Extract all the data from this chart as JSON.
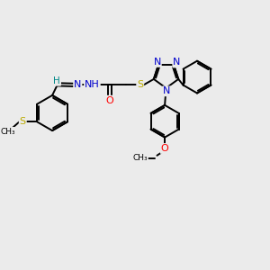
{
  "bg_color": "#ebebeb",
  "bond_color": "#000000",
  "bond_width": 1.4,
  "atom_colors": {
    "N": "#0000cc",
    "O": "#ff0000",
    "S": "#bbaa00",
    "C": "#000000",
    "H": "#008888"
  },
  "figsize": [
    3.0,
    3.0
  ],
  "dpi": 100,
  "xlim": [
    0,
    10
  ],
  "ylim": [
    0,
    10
  ]
}
